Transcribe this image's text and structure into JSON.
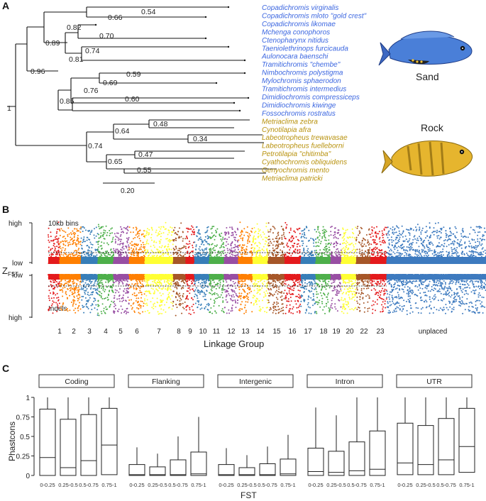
{
  "panel_a": {
    "label": "A",
    "taxa": [
      {
        "name": "Copadichromis virginalis",
        "group": "sand"
      },
      {
        "name": "Copadichromis mloto \"gold crest\"",
        "group": "sand"
      },
      {
        "name": "Copadichromis likomae",
        "group": "sand"
      },
      {
        "name": "Mchenga conophoros",
        "group": "sand"
      },
      {
        "name": "Ctenopharynx nitidus",
        "group": "sand"
      },
      {
        "name": "Taeniolethrinops furcicauda",
        "group": "sand"
      },
      {
        "name": "Aulonocara baenschi",
        "group": "sand"
      },
      {
        "name": "Tramitichromis \"chembe\"",
        "group": "sand"
      },
      {
        "name": "Nimbochromis polystigma",
        "group": "sand"
      },
      {
        "name": "Mylochromis sphaerodon",
        "group": "sand"
      },
      {
        "name": "Tramitichromis intermedius",
        "group": "sand"
      },
      {
        "name": "Dimidiochromis compressiceps",
        "group": "sand"
      },
      {
        "name": "Dimidiochromis kiwinge",
        "group": "sand"
      },
      {
        "name": "Fossochromis rostratus",
        "group": "sand"
      },
      {
        "name": "Metriaclima zebra",
        "group": "rock"
      },
      {
        "name": "Cynotilapia afra",
        "group": "rock"
      },
      {
        "name": "Labeotropheus trewavasae",
        "group": "rock"
      },
      {
        "name": "Labeotropheus fuelleborni",
        "group": "rock"
      },
      {
        "name": "Petrotilapia \"chitimba\"",
        "group": "rock"
      },
      {
        "name": "Cyathochromis obliquidens",
        "group": "rock"
      },
      {
        "name": "Genyochromis mento",
        "group": "rock"
      },
      {
        "name": "Metriaclima patricki",
        "group": "rock"
      }
    ],
    "bootstrap": [
      "0.54",
      "0.66",
      "0.82",
      "0.70",
      "0.89",
      "0.74",
      "0.81",
      "0.96",
      "0.59",
      "0.69",
      "0.76",
      "0.60",
      "0.85",
      "1",
      "0.48",
      "0.64",
      "0.34",
      "0.74",
      "0.47",
      "0.65",
      "0.55"
    ],
    "scale_bar": "0.20",
    "sand_label": "Sand",
    "rock_label": "Rock",
    "colors": {
      "sand": "#3b66e0",
      "rock": "#b8920e"
    }
  },
  "panel_b": {
    "label": "B",
    "ylabel_main": "Z",
    "ylabel_sub": "FST",
    "top_high": "high",
    "top_low": "low",
    "bottom_low": "low",
    "bottom_high": "high",
    "top_title": "10kb bins",
    "bottom_title": "Indels",
    "xlabel": "Linkage Group",
    "linkage_groups": [
      "1",
      "2",
      "3",
      "4",
      "5",
      "6",
      "7",
      "8",
      "9",
      "10",
      "11",
      "12",
      "13",
      "14",
      "15",
      "16",
      "17",
      "18",
      "19",
      "20",
      "22",
      "23",
      "unplaced"
    ],
    "palette": [
      "#e41a1c",
      "#ff7f00",
      "#377eb8",
      "#4daf4a",
      "#984ea3",
      "#ff7f00",
      "#ffff33",
      "#a65628",
      "#e41a1c",
      "#377eb8",
      "#4daf4a",
      "#984ea3",
      "#ff7f00",
      "#ffff33",
      "#a65628",
      "#e41a1c",
      "#377eb8",
      "#4daf4a",
      "#984ea3",
      "#ffff33",
      "#a65628",
      "#e41a1c",
      "#377eb8"
    ]
  },
  "panel_c": {
    "label": "C",
    "ylabel": "Phastcons",
    "xlabel": "FST",
    "yticks": [
      "0",
      "0.25",
      "0.5",
      "0.75",
      "1"
    ],
    "chart_data": {
      "type": "box",
      "title": "",
      "xlabel": "FST",
      "ylabel": "Phastcons",
      "ylim": [
        0,
        1
      ],
      "categories": [
        "0-0.25",
        "0.25-0.5",
        "0.5-0.75",
        "0.75-1"
      ],
      "facets": [
        {
          "name": "Coding",
          "boxes": [
            {
              "min": 0,
              "q1": 0,
              "median": 0.23,
              "q3": 0.85,
              "max": 1.0
            },
            {
              "min": 0,
              "q1": 0,
              "median": 0.1,
              "q3": 0.72,
              "max": 1.0
            },
            {
              "min": 0,
              "q1": 0,
              "median": 0.19,
              "q3": 0.78,
              "max": 1.0
            },
            {
              "min": 0,
              "q1": 0.01,
              "median": 0.39,
              "q3": 0.86,
              "max": 1.0
            }
          ]
        },
        {
          "name": "Flanking",
          "boxes": [
            {
              "min": 0,
              "q1": 0,
              "median": 0.01,
              "q3": 0.14,
              "max": 0.36
            },
            {
              "min": 0,
              "q1": 0,
              "median": 0.01,
              "q3": 0.11,
              "max": 0.28
            },
            {
              "min": 0,
              "q1": 0,
              "median": 0.01,
              "q3": 0.2,
              "max": 0.5
            },
            {
              "min": 0,
              "q1": 0,
              "median": 0.02,
              "q3": 0.3,
              "max": 0.75
            }
          ]
        },
        {
          "name": "Intergenic",
          "boxes": [
            {
              "min": 0,
              "q1": 0,
              "median": 0.01,
              "q3": 0.14,
              "max": 0.35
            },
            {
              "min": 0,
              "q1": 0,
              "median": 0.01,
              "q3": 0.1,
              "max": 0.26
            },
            {
              "min": 0,
              "q1": 0,
              "median": 0.01,
              "q3": 0.15,
              "max": 0.37
            },
            {
              "min": 0,
              "q1": 0,
              "median": 0.02,
              "q3": 0.21,
              "max": 0.52
            }
          ]
        },
        {
          "name": "Intron",
          "boxes": [
            {
              "min": 0,
              "q1": 0,
              "median": 0.05,
              "q3": 0.35,
              "max": 0.87
            },
            {
              "min": 0,
              "q1": 0,
              "median": 0.04,
              "q3": 0.31,
              "max": 0.77
            },
            {
              "min": 0,
              "q1": 0,
              "median": 0.06,
              "q3": 0.43,
              "max": 1.0
            },
            {
              "min": 0,
              "q1": 0,
              "median": 0.08,
              "q3": 0.57,
              "max": 1.0
            }
          ]
        },
        {
          "name": "UTR",
          "boxes": [
            {
              "min": 0,
              "q1": 0.01,
              "median": 0.16,
              "q3": 0.67,
              "max": 1.0
            },
            {
              "min": 0,
              "q1": 0.01,
              "median": 0.14,
              "q3": 0.64,
              "max": 1.0
            },
            {
              "min": 0,
              "q1": 0.01,
              "median": 0.2,
              "q3": 0.73,
              "max": 1.0
            },
            {
              "min": 0,
              "q1": 0.04,
              "median": 0.37,
              "q3": 0.86,
              "max": 1.0
            }
          ]
        }
      ]
    }
  }
}
